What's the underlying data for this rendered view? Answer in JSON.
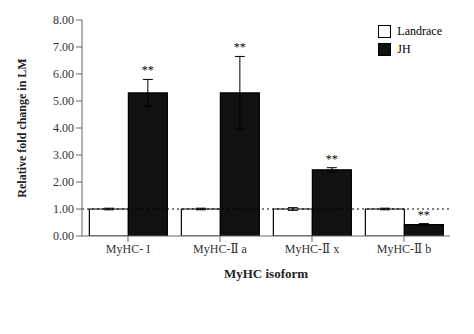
{
  "chart_data": {
    "type": "bar",
    "categories": [
      "MyHC- I",
      "MyHC-Ⅱ a",
      "MyHC-Ⅱ x",
      "MyHC-Ⅱ b"
    ],
    "series": [
      {
        "name": "Landrace",
        "color": "white",
        "values": [
          1.0,
          1.0,
          1.0,
          1.0
        ],
        "errors": [
          0.03,
          0.03,
          0.05,
          0.03
        ]
      },
      {
        "name": "JH",
        "color": "#111111",
        "values": [
          5.3,
          5.3,
          2.45,
          0.42
        ],
        "errors": [
          0.5,
          1.35,
          0.08,
          0.04
        ],
        "annotations": [
          "**",
          "**",
          "**",
          "**"
        ]
      }
    ],
    "edge_color": "black",
    "xlabel": "MyHC isoform",
    "ylabel": "Relative fold change in LM",
    "ylim": [
      0.0,
      8.0
    ],
    "yticks": [
      {
        "value": 0,
        "label": "0.00"
      },
      {
        "value": 1,
        "label": "1.00"
      },
      {
        "value": 2,
        "label": "2.00"
      },
      {
        "value": 3,
        "label": "3.00"
      },
      {
        "value": 4,
        "label": "4.00"
      },
      {
        "value": 5,
        "label": "5.00"
      },
      {
        "value": 6,
        "label": "6.00"
      },
      {
        "value": 7,
        "label": "7.00"
      },
      {
        "value": 8,
        "label": "8.00"
      }
    ],
    "reference_line": {
      "y": 1.0,
      "color": "black",
      "line_style": "dotted"
    },
    "legend": "upper right",
    "grid": false
  }
}
